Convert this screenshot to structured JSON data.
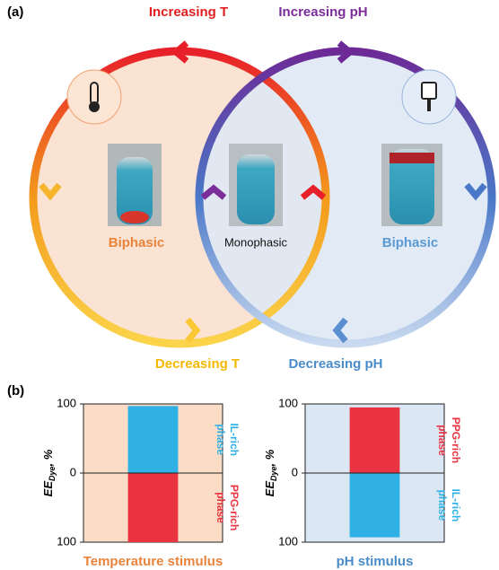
{
  "panel_a": {
    "label": "(a)",
    "increasing_t": "Increasing T",
    "increasing_ph": "Increasing pH",
    "left_state": "Biphasic",
    "middle_state": "Monophasic",
    "right_state": "Biphasic",
    "decreasing_t": "Decreasing T",
    "decreasing_ph": "Decreasing pH"
  },
  "panel_b": {
    "label": "(b)"
  },
  "chart_data": [
    {
      "type": "bar",
      "categories": [
        null
      ],
      "series": [
        {
          "name": "IL-rich phase",
          "color": "#2fb1e6",
          "values": [
            97
          ]
        },
        {
          "name": "PPG-rich phase",
          "color": "#ea3340",
          "values": [
            -100
          ]
        }
      ],
      "ylim": [
        -100,
        100
      ],
      "yticks": [
        {
          "value": 100,
          "label": "100"
        },
        0,
        {
          "value": -100,
          "label": "100"
        }
      ],
      "y_label": {
        "main": "EE",
        "sub": "Dye",
        "unit": ", %"
      },
      "x_label": "Temperature stimulus",
      "x_label_color": "#e8843c",
      "background": "#fbdcc6"
    },
    {
      "type": "bar",
      "categories": [
        null
      ],
      "series": [
        {
          "name": "PPG-rich phase",
          "color": "#ea3340",
          "values": [
            95
          ]
        },
        {
          "name": "IL-rich phase",
          "color": "#2fb1e6",
          "values": [
            -93
          ]
        }
      ],
      "ylim": [
        -100,
        100
      ],
      "yticks": [
        {
          "value": 100,
          "label": "100"
        },
        0,
        {
          "value": -100,
          "label": "100"
        }
      ],
      "y_label": {
        "main": "EE",
        "sub": "Dye",
        "unit": ", %"
      },
      "x_label": "pH stimulus",
      "x_label_color": "#4a8cc9",
      "background": "#dce7f4"
    }
  ]
}
